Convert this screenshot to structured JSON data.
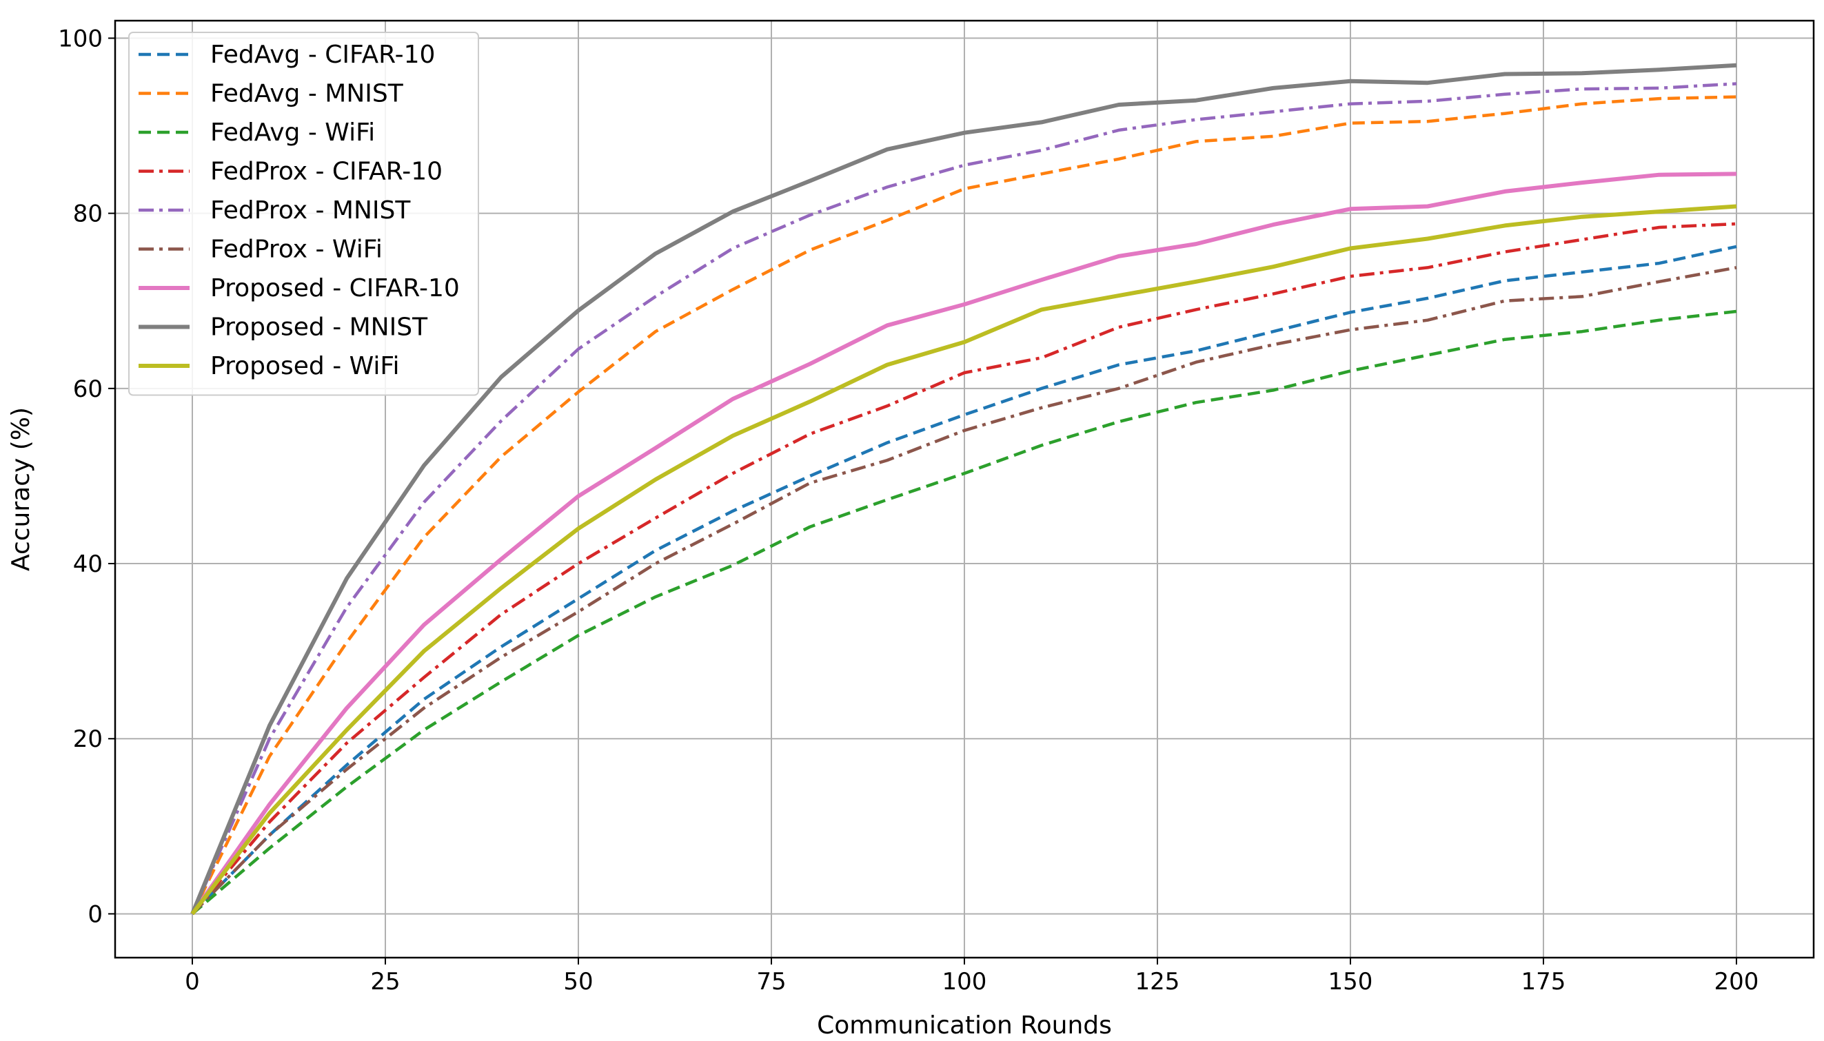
{
  "chart_data": {
    "type": "line",
    "title": "",
    "xlabel": "Communication Rounds",
    "ylabel": "Accuracy (%)",
    "xlim": [
      -10,
      210
    ],
    "ylim": [
      -5,
      102
    ],
    "xticks": [
      0,
      25,
      50,
      75,
      100,
      125,
      150,
      175,
      200
    ],
    "yticks": [
      0,
      20,
      40,
      60,
      80,
      100
    ],
    "grid": true,
    "legend_position": "top-left",
    "x": [
      0,
      10,
      20,
      30,
      40,
      50,
      60,
      70,
      80,
      90,
      100,
      110,
      120,
      130,
      140,
      150,
      160,
      170,
      180,
      190,
      200
    ],
    "series": [
      {
        "name": "FedAvg - CIFAR-10",
        "color": "#1f77b4",
        "style": "dashed",
        "values": [
          0,
          9,
          17,
          24.5,
          30.5,
          36,
          41.5,
          46,
          50,
          53.8,
          57,
          60,
          62.7,
          64.3,
          66.5,
          68.7,
          70.3,
          72.3,
          73.3,
          74.3,
          76.2
        ]
      },
      {
        "name": "FedAvg - MNIST",
        "color": "#ff7f0e",
        "style": "dashed",
        "values": [
          0,
          18,
          31,
          43,
          52.2,
          59.6,
          66.5,
          71.3,
          75.8,
          79.2,
          82.8,
          84.5,
          86.2,
          88.2,
          88.8,
          90.3,
          90.5,
          91.4,
          92.5,
          93.1,
          93.3
        ]
      },
      {
        "name": "FedAvg - WiFi",
        "color": "#2ca02c",
        "style": "dashed",
        "values": [
          0,
          7.5,
          14.5,
          21,
          26.5,
          31.8,
          36.2,
          39.8,
          44.2,
          47.3,
          50.3,
          53.5,
          56.2,
          58.4,
          59.8,
          62,
          63.8,
          65.6,
          66.5,
          67.8,
          68.8
        ]
      },
      {
        "name": "FedProx - CIFAR-10",
        "color": "#d62728",
        "style": "dashdot",
        "values": [
          0,
          10.5,
          19.5,
          27,
          34.2,
          40,
          45.2,
          50.3,
          54.8,
          58,
          61.8,
          63.5,
          67,
          69,
          70.8,
          72.8,
          73.8,
          75.6,
          77,
          78.4,
          78.8
        ]
      },
      {
        "name": "FedProx - MNIST",
        "color": "#9467bd",
        "style": "dashdot",
        "values": [
          0,
          20,
          35,
          47,
          56.3,
          64.5,
          70.5,
          76,
          79.8,
          83,
          85.5,
          87.2,
          89.5,
          90.7,
          91.6,
          92.5,
          92.8,
          93.6,
          94.2,
          94.3,
          94.8
        ]
      },
      {
        "name": "FedProx - WiFi",
        "color": "#8c564b",
        "style": "dashdot",
        "values": [
          0,
          9,
          16.5,
          23.5,
          29.3,
          34.5,
          40,
          44.5,
          49.2,
          51.8,
          55.2,
          57.8,
          60,
          63,
          65,
          66.7,
          67.8,
          70,
          70.5,
          72.2,
          73.8
        ]
      },
      {
        "name": "Proposed - CIFAR-10",
        "color": "#e377c2",
        "style": "solid",
        "values": [
          0,
          12.5,
          23.5,
          33,
          40.5,
          47.7,
          53.2,
          58.8,
          62.8,
          67.2,
          69.6,
          72.4,
          75.1,
          76.5,
          78.7,
          80.5,
          80.8,
          82.5,
          83.5,
          84.4,
          84.5
        ]
      },
      {
        "name": "Proposed - MNIST",
        "color": "#7f7f7f",
        "style": "solid",
        "values": [
          0,
          21.5,
          38.3,
          51.2,
          61.3,
          68.9,
          75.4,
          80.2,
          83.7,
          87.3,
          89.2,
          90.4,
          92.4,
          92.9,
          94.3,
          95.1,
          94.9,
          95.9,
          96,
          96.4,
          96.9
        ]
      },
      {
        "name": "Proposed - WiFi",
        "color": "#bcbd22",
        "style": "solid",
        "values": [
          0,
          11.5,
          21,
          30,
          37.2,
          44,
          49.6,
          54.6,
          58.5,
          62.7,
          65.3,
          69,
          70.6,
          72.2,
          73.9,
          76,
          77.1,
          78.6,
          79.6,
          80.2,
          80.8
        ]
      }
    ]
  }
}
